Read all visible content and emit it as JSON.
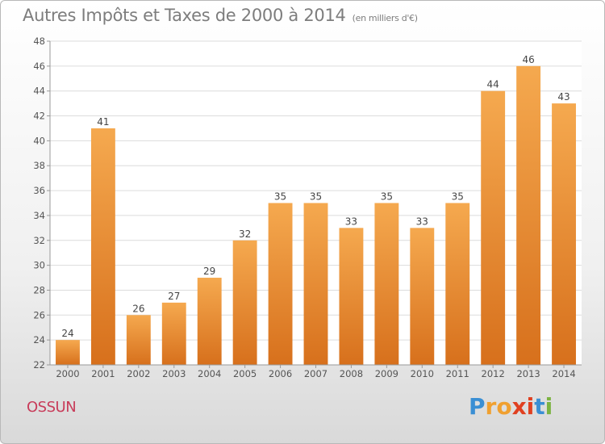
{
  "title": "Autres Impôts et Taxes de 2000 à 2014",
  "unit_note": "(en milliers d'€)",
  "town": "OSSUN",
  "logo": {
    "letters": [
      "P",
      "r",
      "o",
      "x",
      "i",
      "t",
      "i"
    ],
    "colors": [
      "#3a8fd4",
      "#f0a030",
      "#f0a030",
      "#e04020",
      "#e04020",
      "#3a8fd4",
      "#7cb342"
    ]
  },
  "colors": {
    "bar_light": "#f5a94f",
    "bar_dark": "#d7701c",
    "grid": "#dcdcdc",
    "axis_text": "#555555",
    "title": "#7d7d7d",
    "town": "#c83c5a"
  },
  "chart_data": {
    "type": "bar",
    "title": "Autres Impôts et Taxes de 2000 à 2014",
    "ylabel": "(en milliers d'€)",
    "categories": [
      "2000",
      "2001",
      "2002",
      "2003",
      "2004",
      "2005",
      "2006",
      "2007",
      "2008",
      "2009",
      "2010",
      "2011",
      "2012",
      "2013",
      "2014"
    ],
    "values": [
      24,
      41,
      26,
      27,
      29,
      32,
      35,
      35,
      33,
      35,
      33,
      35,
      44,
      46,
      43
    ],
    "ylim": [
      22,
      48
    ],
    "yticks": [
      22,
      24,
      26,
      28,
      30,
      32,
      34,
      36,
      38,
      40,
      42,
      44,
      46,
      48
    ],
    "grid": true
  }
}
